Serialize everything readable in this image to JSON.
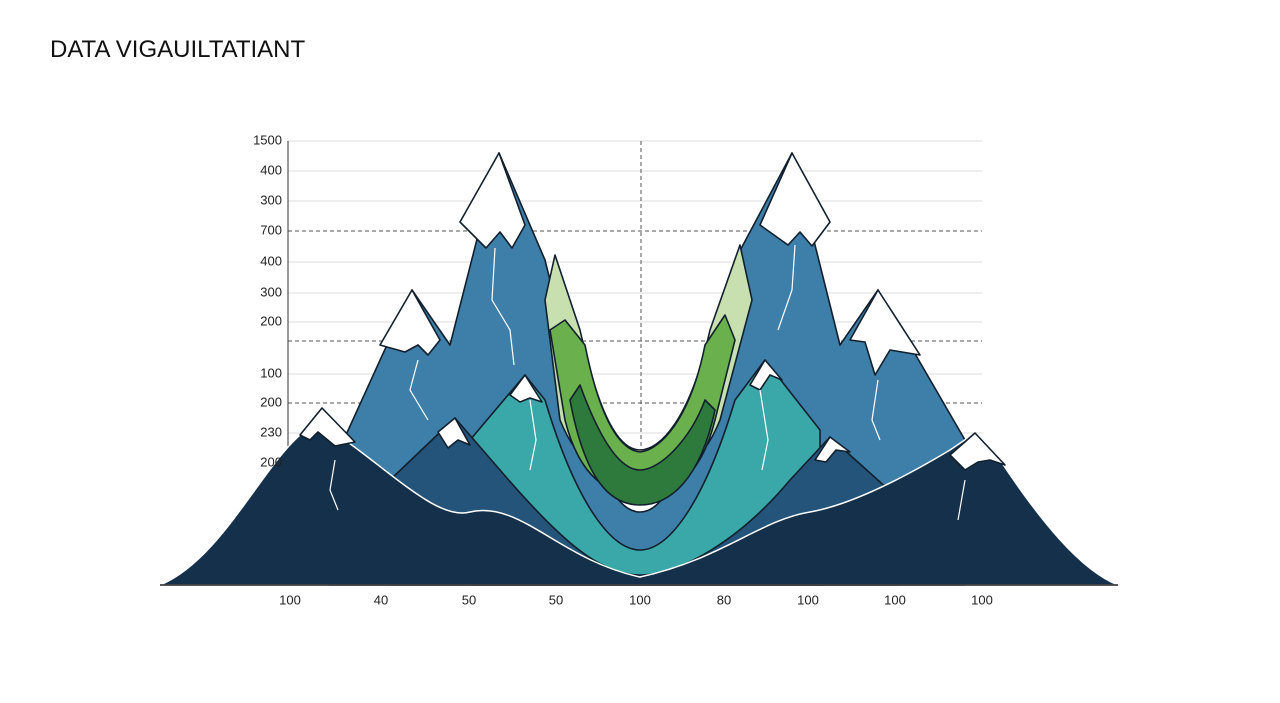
{
  "title": "DATA VIGAUILTATIANT",
  "y_labels": [
    "1500",
    "400",
    "300",
    "700",
    "400",
    "300",
    "200",
    "100",
    "200",
    "230",
    "200"
  ],
  "x_labels": [
    "100",
    "40",
    "50",
    "50",
    "100",
    "80",
    "100",
    "100",
    "100"
  ]
}
